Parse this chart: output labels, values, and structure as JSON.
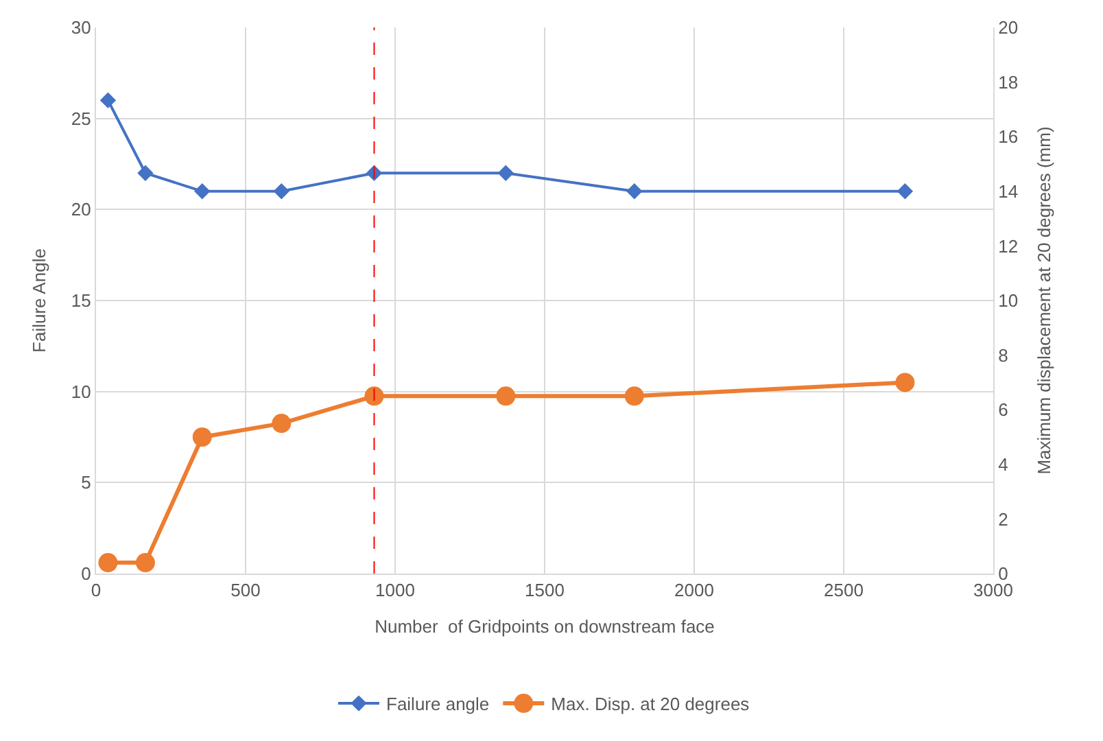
{
  "chart_data": {
    "type": "line",
    "xlabel": "Number  of Gridpoints on downstream face",
    "ylabel": "Failure Angle",
    "y2label": "Maximum displacement at 20 degrees (mm)",
    "x": [
      40,
      165,
      355,
      620,
      930,
      1370,
      1800,
      2705
    ],
    "series": [
      {
        "name": "Failure angle",
        "color": "#4472c4",
        "marker": "diamond",
        "values": [
          26,
          22,
          21,
          21,
          22,
          22,
          21,
          21
        ]
      },
      {
        "name": "Max. Disp. at 20 degrees",
        "color": "#ed7d31",
        "marker": "circle",
        "axis": "y2",
        "values": [
          0.4,
          0.4,
          5,
          5.5,
          6.5,
          6.5,
          6.5,
          7
        ]
      }
    ],
    "xlim": [
      0,
      3000
    ],
    "xticks": [
      0,
      500,
      1000,
      1500,
      2000,
      2500,
      3000
    ],
    "ylim": [
      0,
      30
    ],
    "yticks": [
      0,
      5,
      10,
      15,
      20,
      25,
      30
    ],
    "y2lim": [
      0,
      20
    ],
    "y2ticks": [
      0,
      2,
      4,
      6,
      8,
      10,
      12,
      14,
      16,
      18,
      20
    ],
    "ref_lines": [
      {
        "axis": "x",
        "value": 930,
        "color": "#ff0000",
        "line_style": "dashed"
      }
    ],
    "grid": true,
    "legend": "bottom"
  }
}
